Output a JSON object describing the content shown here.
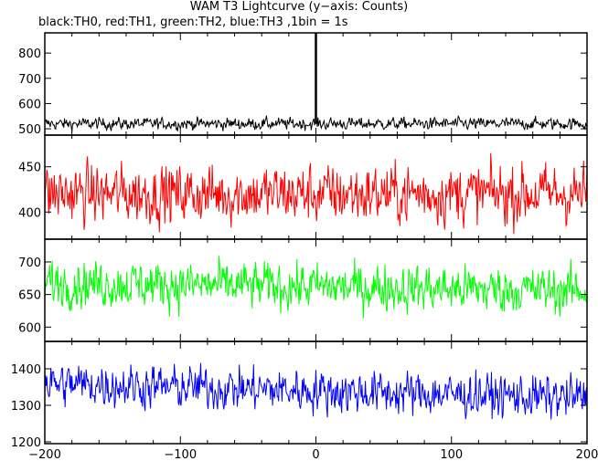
{
  "chart_data": {
    "type": "line",
    "title": "WAM T3 Lightcurve (y−axis: Counts)",
    "subtitle": "black:TH0, red:TH1, green:TH2, blue:TH3 ,1bin = 1s",
    "xlabel": "",
    "xlim": [
      -200,
      200
    ],
    "x_ticks": [
      -200,
      -100,
      0,
      100,
      200
    ],
    "panels": [
      {
        "name": "TH0",
        "color": "#000000",
        "ylim": [
          475,
          880
        ],
        "y_ticks": [
          500,
          600,
          700,
          800
        ],
        "baseline": 520,
        "noise": 16,
        "spike": {
          "x": 0,
          "value": 880
        }
      },
      {
        "name": "TH1",
        "color": "#ff0000",
        "ylim": [
          370,
          485
        ],
        "y_ticks": [
          400,
          450
        ],
        "baseline": 420,
        "noise": 22
      },
      {
        "name": "TH2",
        "color": "#00ff00",
        "ylim": [
          578,
          735
        ],
        "y_ticks": [
          600,
          650,
          700
        ],
        "baseline": 668,
        "noise": 24,
        "trend": -12
      },
      {
        "name": "TH3",
        "color": "#0000ff",
        "ylim": [
          1195,
          1475
        ],
        "y_ticks": [
          1200,
          1300,
          1400
        ],
        "baseline": 1360,
        "noise": 40,
        "trend": -40
      }
    ]
  }
}
